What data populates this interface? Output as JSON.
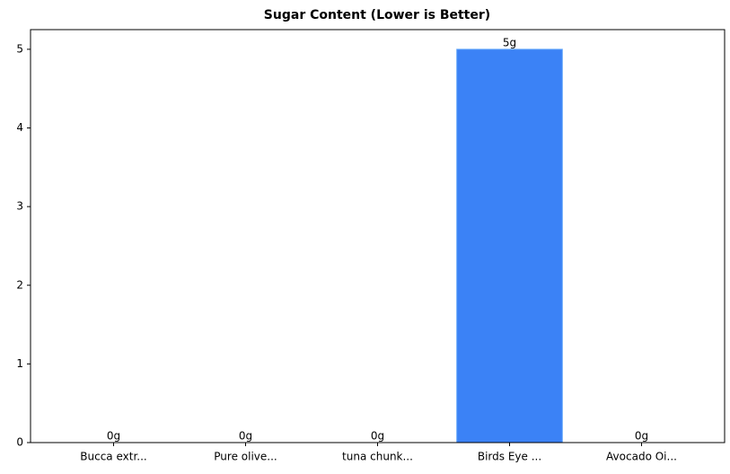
{
  "chart_data": {
    "type": "bar",
    "title": "Sugar Content (Lower is Better)",
    "categories": [
      "Bucca extr...",
      "Pure olive...",
      "tuna chunk...",
      "Birds Eye ...",
      "Avocado Oi..."
    ],
    "values": [
      0,
      0,
      0,
      5,
      0
    ],
    "value_labels": [
      "0g",
      "0g",
      "0g",
      "5g",
      "0g"
    ],
    "color": "#3b82f6",
    "ylim": [
      0,
      5.25
    ],
    "yticks": [
      0,
      1,
      2,
      3,
      4,
      5
    ],
    "grid": false
  }
}
